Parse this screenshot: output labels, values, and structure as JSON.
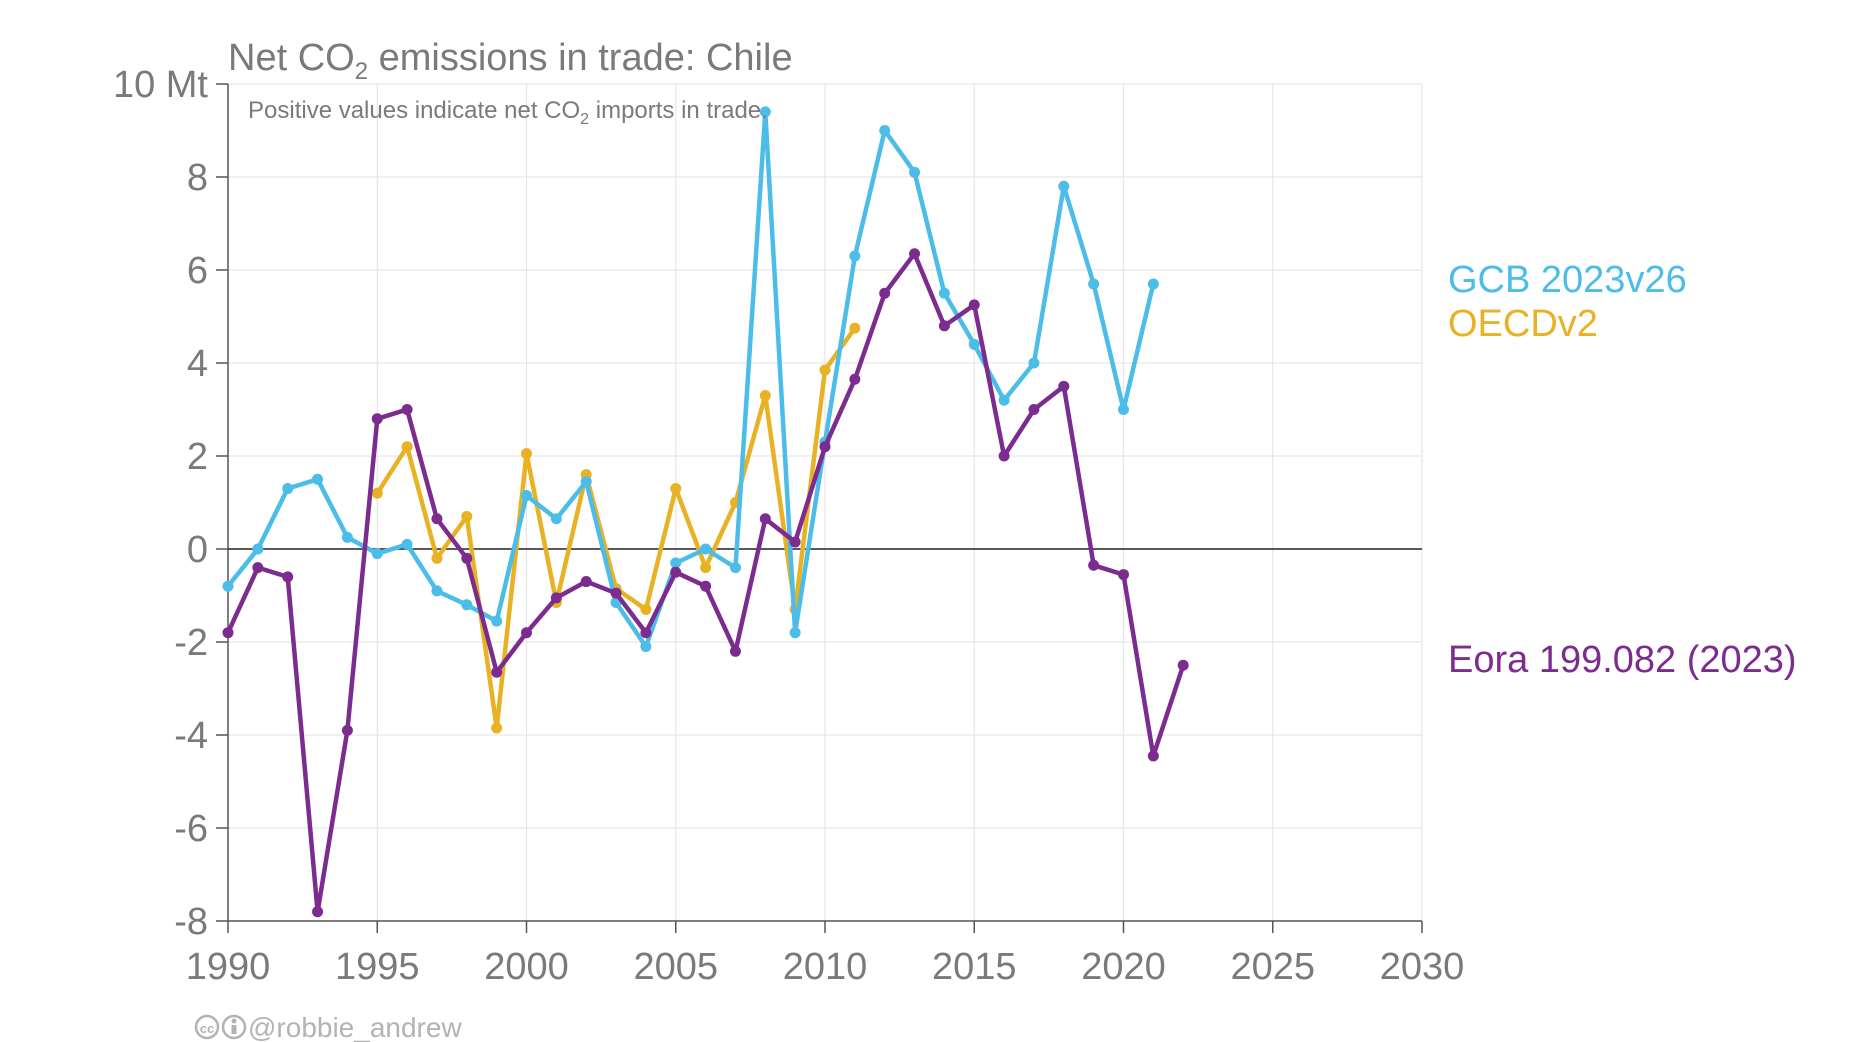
{
  "title": {
    "prefix": "Net CO",
    "sub": "2",
    "suffix": " emissions in trade: Chile"
  },
  "subtitle": {
    "prefix": "Positive values indicate net CO",
    "sub": "2",
    "suffix": " imports in trade."
  },
  "credit": "@robbie_andrew",
  "chart_data": {
    "type": "line",
    "title": "Net CO2 emissions in trade: Chile",
    "subtitle": "Positive values indicate net CO2 imports in trade.",
    "xlim": [
      1990,
      2030
    ],
    "ylim": [
      -8,
      10
    ],
    "x_ticks": [
      1990,
      1995,
      2000,
      2005,
      2010,
      2015,
      2020,
      2025,
      2030
    ],
    "y_ticks": [
      -8,
      -6,
      -4,
      -2,
      0,
      2,
      4,
      6,
      8,
      10
    ],
    "y_tick_labels": [
      "-8",
      "-6",
      "-4",
      "-2",
      "0",
      "2",
      "4",
      "6",
      "8",
      "10 Mt"
    ],
    "grid": true,
    "legend_position": "right",
    "series": [
      {
        "name": "GCB 2023v26",
        "color": "#4bbde8",
        "x": [
          1990,
          1991,
          1992,
          1993,
          1994,
          1995,
          1996,
          1997,
          1998,
          1999,
          2000,
          2001,
          2002,
          2003,
          2004,
          2005,
          2006,
          2007,
          2008,
          2009,
          2010,
          2011,
          2012,
          2013,
          2014,
          2015,
          2016,
          2017,
          2018,
          2019,
          2020,
          2021
        ],
        "y": [
          -0.8,
          0.0,
          1.3,
          1.5,
          0.25,
          -0.1,
          0.1,
          -0.9,
          -1.2,
          -1.55,
          1.15,
          0.65,
          1.45,
          -1.15,
          -2.1,
          -0.3,
          0.0,
          -0.4,
          9.4,
          -1.8,
          2.3,
          6.3,
          9.0,
          8.1,
          5.5,
          4.4,
          3.2,
          4.0,
          7.8,
          5.7,
          3.0,
          5.7
        ]
      },
      {
        "name": "OECDv2",
        "color": "#e8b224",
        "x": [
          1995,
          1996,
          1997,
          1998,
          1999,
          2000,
          2001,
          2002,
          2003,
          2004,
          2005,
          2006,
          2007,
          2008,
          2009,
          2010,
          2011
        ],
        "y": [
          1.2,
          2.2,
          -0.2,
          0.7,
          -3.85,
          2.05,
          -1.15,
          1.6,
          -0.85,
          -1.3,
          1.3,
          -0.4,
          1.0,
          3.3,
          -1.3,
          3.85,
          4.75
        ]
      },
      {
        "name": "Eora 199.082 (2023)",
        "color": "#7b2c8e",
        "x": [
          1990,
          1991,
          1992,
          1993,
          1994,
          1995,
          1996,
          1997,
          1998,
          1999,
          2000,
          2001,
          2002,
          2003,
          2004,
          2005,
          2006,
          2007,
          2008,
          2009,
          2010,
          2011,
          2012,
          2013,
          2014,
          2015,
          2016,
          2017,
          2018,
          2019,
          2020,
          2021,
          2022
        ],
        "y": [
          -1.8,
          -0.4,
          -0.6,
          -7.8,
          -3.9,
          2.8,
          3.0,
          0.65,
          -0.2,
          -2.65,
          -1.8,
          -1.05,
          -0.7,
          -0.95,
          -1.8,
          -0.5,
          -0.8,
          -2.2,
          0.65,
          0.15,
          2.2,
          3.65,
          5.5,
          6.35,
          4.8,
          5.25,
          2.0,
          3.0,
          3.5,
          -0.35,
          -0.55,
          -4.45,
          -2.5
        ]
      }
    ]
  }
}
